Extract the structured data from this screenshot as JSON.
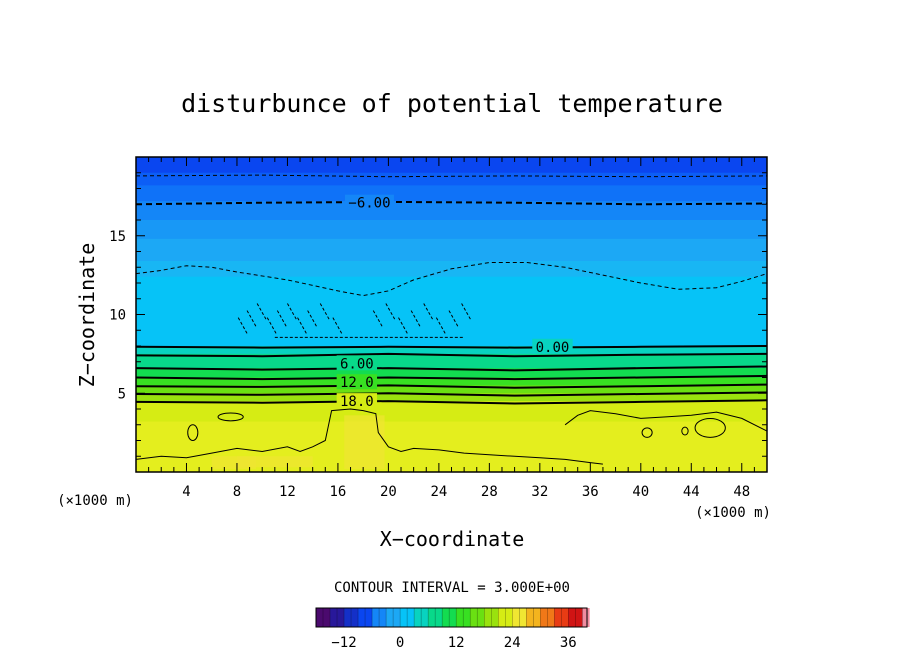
{
  "chart_data": {
    "type": "heatmap",
    "title": "disturbunce of potential temperature",
    "xlabel": "X−coordinate",
    "ylabel": "Z−coordinate",
    "x_unit": "(×1000 m)",
    "y_unit": "(×1000 m)",
    "xlim": [
      0,
      50
    ],
    "ylim": [
      0,
      20
    ],
    "x_ticks": [
      4,
      8,
      12,
      16,
      20,
      24,
      28,
      32,
      36,
      40,
      44,
      48
    ],
    "x_tick_labels": [
      "4",
      "8",
      "12",
      "16",
      "20",
      "24",
      "28",
      "32",
      "36",
      "40",
      "44",
      "48"
    ],
    "y_ticks": [
      5,
      10,
      15
    ],
    "y_tick_labels": [
      "5",
      "10",
      "15"
    ],
    "contour_interval_text": "CONTOUR INTERVAL = 3.000E+00",
    "contour_labels": [
      {
        "text": "−6.00",
        "x": 18.5,
        "z": 17.1
      },
      {
        "text": "0.00",
        "x": 33.0,
        "z": 7.95
      },
      {
        "text": "6.00",
        "x": 17.5,
        "z": 6.9
      },
      {
        "text": "12.0",
        "x": 17.5,
        "z": 5.7
      },
      {
        "text": "18.0",
        "x": 17.5,
        "z": 4.5
      }
    ],
    "colorbar": {
      "min": -18,
      "max": 40,
      "ticks": [
        -12,
        0,
        12,
        24,
        36
      ],
      "tick_labels": [
        "−12",
        "0",
        "12",
        "24",
        "36"
      ]
    },
    "color_bands": [
      {
        "z_top": 20.0,
        "value": -12,
        "color": "#0a46f0"
      },
      {
        "z_top": 19.0,
        "value": -9,
        "color": "#0c5ef6"
      },
      {
        "z_top": 18.2,
        "value": -7.5,
        "color": "#0f72f8"
      },
      {
        "z_top": 17.2,
        "value": -6,
        "color": "#1486f7"
      },
      {
        "z_top": 16.0,
        "value": -4.5,
        "color": "#1898f6"
      },
      {
        "z_top": 14.8,
        "value": -3,
        "color": "#1ca8f5"
      },
      {
        "z_top": 13.4,
        "value": -1.5,
        "color": "#18b6f4"
      },
      {
        "z_top": 12.4,
        "value": -0.5,
        "color": "#06c3f7"
      },
      {
        "z_top": 8.0,
        "value": 1.5,
        "color": "#08d3c0"
      },
      {
        "z_top": 7.5,
        "value": 4.5,
        "color": "#08d98a"
      },
      {
        "z_top": 6.6,
        "value": 7.5,
        "color": "#13dc50"
      },
      {
        "z_top": 6.0,
        "value": 10.5,
        "color": "#38e022"
      },
      {
        "z_top": 5.5,
        "value": 13.5,
        "color": "#6ae012"
      },
      {
        "z_top": 5.0,
        "value": 16.5,
        "color": "#9ae20e"
      },
      {
        "z_top": 4.5,
        "value": 19.5,
        "color": "#d6ec14"
      },
      {
        "z_top": 3.2,
        "value": 21,
        "color": "#e4ee1e"
      }
    ],
    "contours": [
      {
        "name": "-9.0",
        "style": "dashed",
        "points": [
          [
            0,
            18.8
          ],
          [
            10,
            18.85
          ],
          [
            20,
            18.75
          ],
          [
            30,
            18.8
          ],
          [
            40,
            18.75
          ],
          [
            50,
            18.8
          ]
        ]
      },
      {
        "name": "-6.0",
        "style": "dashed-bold",
        "points": [
          [
            0,
            17.0
          ],
          [
            10,
            17.1
          ],
          [
            20,
            17.15
          ],
          [
            30,
            17.1
          ],
          [
            40,
            17.0
          ],
          [
            50,
            17.05
          ]
        ]
      },
      {
        "name": "-3.0",
        "style": "dashed",
        "points": [
          [
            0,
            12.6
          ],
          [
            2,
            12.8
          ],
          [
            4,
            13.1
          ],
          [
            6,
            13.0
          ],
          [
            8,
            12.7
          ],
          [
            12,
            12.2
          ],
          [
            16,
            11.5
          ],
          [
            18,
            11.2
          ],
          [
            20,
            11.5
          ],
          [
            22,
            12.2
          ],
          [
            25,
            12.9
          ],
          [
            28,
            13.3
          ],
          [
            31,
            13.3
          ],
          [
            34,
            13.0
          ],
          [
            37,
            12.5
          ],
          [
            40,
            12.0
          ],
          [
            43,
            11.6
          ],
          [
            46,
            11.7
          ],
          [
            48,
            12.1
          ],
          [
            50,
            12.6
          ]
        ]
      },
      {
        "name": "0.0",
        "style": "solid-bold",
        "points": [
          [
            0,
            7.95
          ],
          [
            10,
            7.9
          ],
          [
            20,
            7.95
          ],
          [
            30,
            7.9
          ],
          [
            40,
            7.95
          ],
          [
            50,
            8.0
          ]
        ]
      },
      {
        "name": "3.0",
        "style": "solid-bold",
        "points": [
          [
            0,
            7.4
          ],
          [
            10,
            7.35
          ],
          [
            20,
            7.5
          ],
          [
            30,
            7.35
          ],
          [
            40,
            7.45
          ],
          [
            50,
            7.5
          ]
        ]
      },
      {
        "name": "6.0",
        "style": "solid-bold",
        "points": [
          [
            0,
            6.6
          ],
          [
            10,
            6.5
          ],
          [
            20,
            6.6
          ],
          [
            30,
            6.45
          ],
          [
            40,
            6.6
          ],
          [
            50,
            6.7
          ]
        ]
      },
      {
        "name": "9.0",
        "style": "solid-bold",
        "points": [
          [
            0,
            6.0
          ],
          [
            10,
            5.9
          ],
          [
            20,
            6.0
          ],
          [
            30,
            5.9
          ],
          [
            40,
            6.0
          ],
          [
            50,
            6.1
          ]
        ]
      },
      {
        "name": "12.0",
        "style": "solid-bold",
        "points": [
          [
            0,
            5.45
          ],
          [
            10,
            5.4
          ],
          [
            20,
            5.5
          ],
          [
            30,
            5.35
          ],
          [
            40,
            5.45
          ],
          [
            50,
            5.55
          ]
        ]
      },
      {
        "name": "15.0",
        "style": "solid-bold",
        "points": [
          [
            0,
            4.95
          ],
          [
            10,
            4.9
          ],
          [
            20,
            5.0
          ],
          [
            30,
            4.85
          ],
          [
            40,
            4.95
          ],
          [
            50,
            5.05
          ]
        ]
      },
      {
        "name": "18.0",
        "style": "solid-bold",
        "points": [
          [
            0,
            4.45
          ],
          [
            10,
            4.4
          ],
          [
            20,
            4.5
          ],
          [
            30,
            4.35
          ],
          [
            40,
            4.45
          ],
          [
            50,
            4.55
          ]
        ]
      },
      {
        "name": "21.0-west",
        "style": "solid-thin",
        "points": [
          [
            0,
            0.8
          ],
          [
            2,
            1.0
          ],
          [
            4,
            0.9
          ],
          [
            6,
            1.2
          ],
          [
            8,
            1.5
          ],
          [
            10,
            1.3
          ],
          [
            12,
            1.6
          ],
          [
            13,
            1.3
          ],
          [
            14,
            1.6
          ],
          [
            15,
            2.0
          ],
          [
            15.5,
            3.9
          ],
          [
            17,
            4.0
          ],
          [
            18,
            3.9
          ],
          [
            19,
            3.7
          ],
          [
            19.2,
            2.5
          ],
          [
            20,
            1.6
          ],
          [
            21,
            1.3
          ],
          [
            22,
            1.5
          ],
          [
            24,
            1.4
          ],
          [
            26,
            1.2
          ],
          [
            28,
            1.1
          ],
          [
            30,
            1.0
          ],
          [
            32,
            0.9
          ],
          [
            34,
            0.8
          ],
          [
            36,
            0.6
          ],
          [
            37,
            0.5
          ]
        ]
      },
      {
        "name": "21.0-east",
        "style": "solid-thin",
        "points": [
          [
            34,
            3.0
          ],
          [
            35,
            3.6
          ],
          [
            36,
            3.9
          ],
          [
            38,
            3.7
          ],
          [
            40,
            3.4
          ],
          [
            42,
            3.5
          ],
          [
            44,
            3.6
          ],
          [
            46,
            3.8
          ],
          [
            48,
            3.4
          ],
          [
            50,
            2.6
          ]
        ]
      }
    ],
    "dashed_eddies_x": [
      8.5,
      9.2,
      10,
      10.8,
      11.6,
      12.4,
      13.2,
      14.0,
      15.0,
      16.0,
      19.2,
      20.2,
      21.2,
      22.2,
      23.2,
      24.2,
      25.2,
      26.2
    ]
  }
}
